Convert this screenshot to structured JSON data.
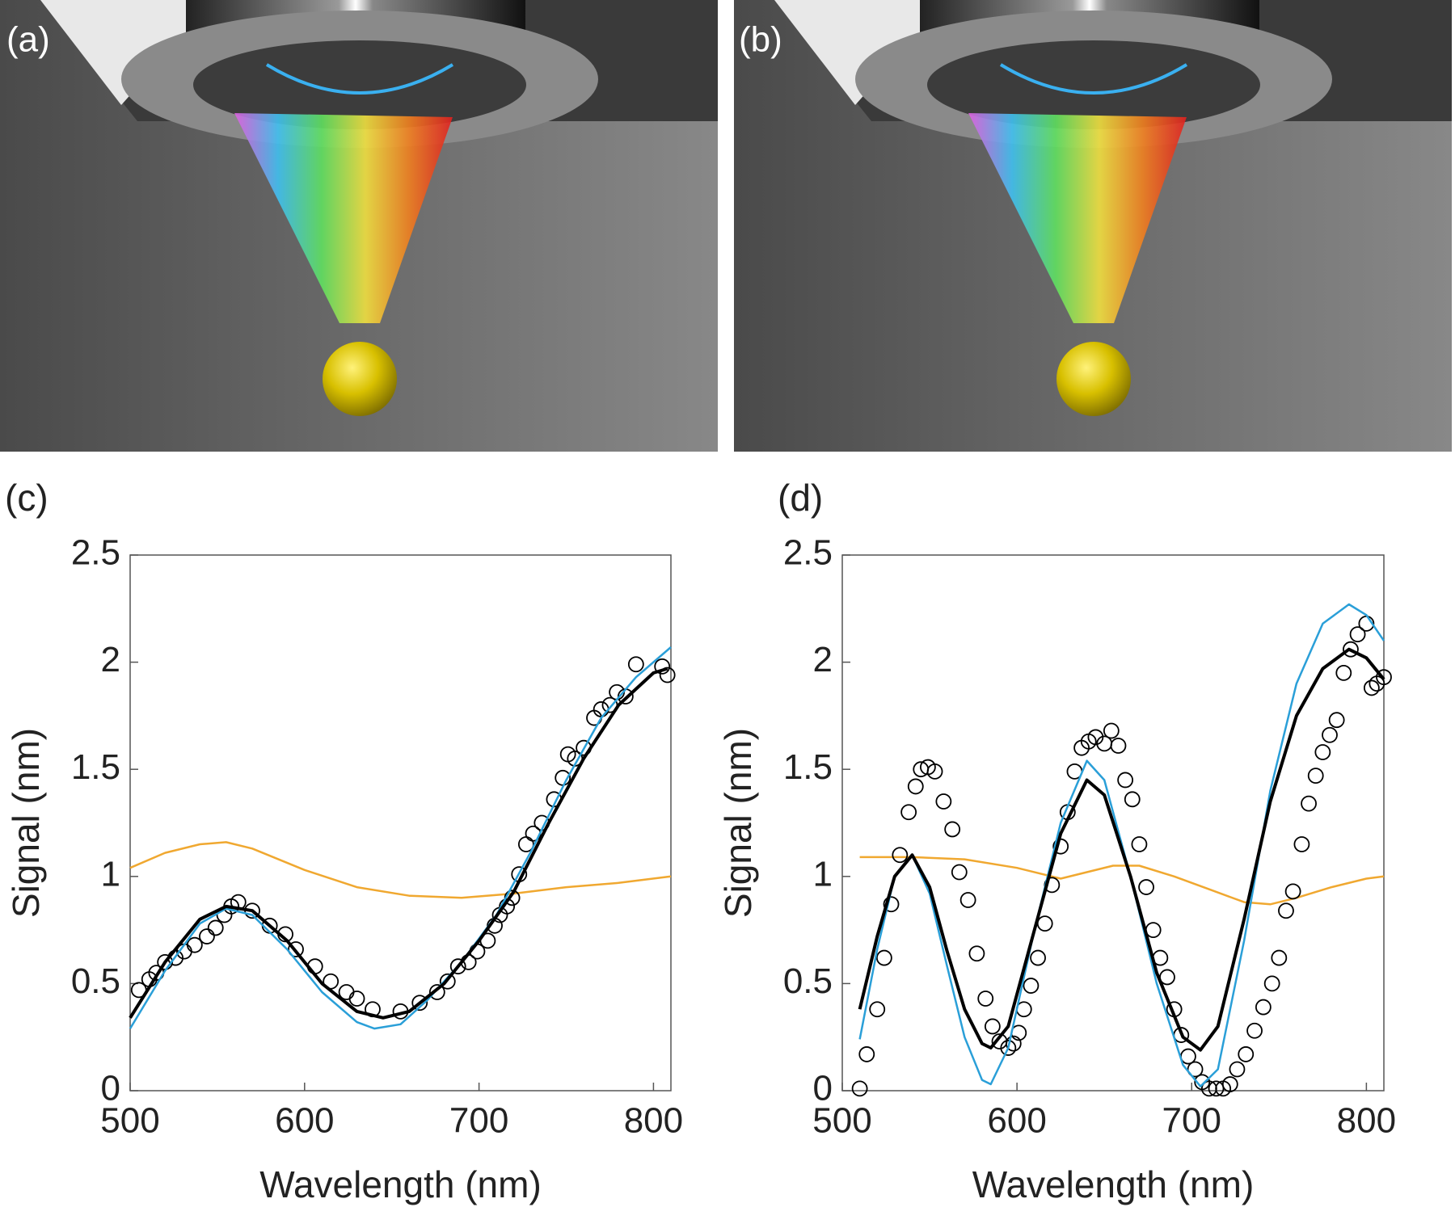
{
  "panels": [
    "(a)",
    "(b)"
  ],
  "chart_data": [
    {
      "type": "line",
      "label": "(c)",
      "xlabel": "Wavelength (nm)",
      "ylabel": "Signal (nm)",
      "xlim": [
        500,
        810
      ],
      "ylim": [
        0,
        2.5
      ],
      "xticks": [
        500,
        600,
        700,
        800
      ],
      "yticks": [
        0,
        0.5,
        1,
        1.5,
        2,
        2.5
      ],
      "series": [
        {
          "color": "#f0a830",
          "x": [
            500,
            520,
            540,
            555,
            570,
            600,
            630,
            660,
            690,
            720,
            750,
            780,
            810
          ],
          "values": [
            1.04,
            1.11,
            1.15,
            1.16,
            1.13,
            1.03,
            0.95,
            0.91,
            0.9,
            0.92,
            0.95,
            0.97,
            1.0
          ]
        },
        {
          "color": "#000000",
          "marker": "o",
          "x": [
            505,
            511,
            515,
            520,
            526,
            531,
            537,
            544,
            549,
            554,
            558,
            562,
            570,
            580,
            589,
            595,
            606,
            615,
            624,
            630,
            639,
            655,
            666,
            676,
            682,
            688,
            694,
            699,
            705,
            709,
            712,
            716,
            719,
            723,
            727,
            731,
            736,
            743,
            748,
            751,
            755,
            760,
            766,
            770,
            775,
            779,
            784,
            790,
            805,
            808
          ],
          "values": [
            0.47,
            0.52,
            0.55,
            0.6,
            0.62,
            0.65,
            0.68,
            0.72,
            0.76,
            0.82,
            0.86,
            0.88,
            0.84,
            0.77,
            0.73,
            0.66,
            0.58,
            0.51,
            0.46,
            0.43,
            0.38,
            0.37,
            0.41,
            0.46,
            0.51,
            0.58,
            0.6,
            0.65,
            0.7,
            0.77,
            0.82,
            0.86,
            0.9,
            1.01,
            1.15,
            1.2,
            1.25,
            1.36,
            1.46,
            1.57,
            1.55,
            1.6,
            1.74,
            1.78,
            1.8,
            1.86,
            1.84,
            1.99,
            1.98,
            1.94
          ]
        },
        {
          "color": "#2a9fd8",
          "x": [
            500,
            520,
            540,
            555,
            570,
            590,
            610,
            630,
            640,
            655,
            670,
            690,
            710,
            730,
            750,
            770,
            790,
            810
          ],
          "values": [
            0.29,
            0.56,
            0.78,
            0.85,
            0.82,
            0.66,
            0.46,
            0.32,
            0.29,
            0.31,
            0.42,
            0.6,
            0.82,
            1.12,
            1.45,
            1.74,
            1.93,
            2.07
          ]
        },
        {
          "color": "#000000",
          "width": 4,
          "x": [
            500,
            520,
            540,
            555,
            570,
            590,
            610,
            630,
            645,
            660,
            680,
            700,
            720,
            740,
            760,
            780,
            800,
            808
          ],
          "values": [
            0.34,
            0.6,
            0.8,
            0.86,
            0.84,
            0.7,
            0.5,
            0.37,
            0.34,
            0.37,
            0.5,
            0.7,
            0.93,
            1.25,
            1.55,
            1.8,
            1.95,
            1.97
          ]
        }
      ]
    },
    {
      "type": "line",
      "label": "(d)",
      "xlabel": "Wavelength (nm)",
      "ylabel": "Signal (nm)",
      "xlim": [
        500,
        810
      ],
      "ylim": [
        0,
        2.5
      ],
      "xticks": [
        500,
        600,
        700,
        800
      ],
      "yticks": [
        0,
        0.5,
        1,
        1.5,
        2,
        2.5
      ],
      "series": [
        {
          "color": "#f0a830",
          "x": [
            510,
            540,
            570,
            600,
            625,
            640,
            655,
            670,
            690,
            710,
            730,
            745,
            760,
            780,
            800,
            810
          ],
          "values": [
            1.09,
            1.09,
            1.08,
            1.04,
            0.99,
            1.02,
            1.05,
            1.05,
            1.0,
            0.94,
            0.88,
            0.87,
            0.9,
            0.95,
            0.99,
            1.0
          ]
        },
        {
          "color": "#000000",
          "marker": "o",
          "x": [
            510,
            514,
            520,
            524,
            528,
            533,
            538,
            542,
            545,
            549,
            553,
            558,
            563,
            567,
            572,
            577,
            582,
            586,
            590,
            595,
            598,
            601,
            604,
            608,
            612,
            616,
            620,
            625,
            629,
            633,
            637,
            641,
            645,
            650,
            654,
            658,
            662,
            666,
            670,
            674,
            678,
            682,
            686,
            690,
            694,
            698,
            702,
            706,
            710,
            714,
            718,
            722,
            726,
            731,
            736,
            741,
            746,
            750,
            754,
            758,
            763,
            767,
            771,
            775,
            779,
            783,
            787,
            791,
            795,
            800,
            803,
            806,
            810
          ],
          "values": [
            0.01,
            0.17,
            0.38,
            0.62,
            0.87,
            1.1,
            1.3,
            1.42,
            1.5,
            1.51,
            1.49,
            1.35,
            1.22,
            1.02,
            0.89,
            0.64,
            0.43,
            0.3,
            0.23,
            0.2,
            0.22,
            0.27,
            0.38,
            0.49,
            0.62,
            0.78,
            0.96,
            1.14,
            1.3,
            1.49,
            1.6,
            1.63,
            1.65,
            1.62,
            1.68,
            1.61,
            1.45,
            1.36,
            1.15,
            0.95,
            0.75,
            0.62,
            0.53,
            0.38,
            0.26,
            0.16,
            0.1,
            0.04,
            0.01,
            0.01,
            0.01,
            0.03,
            0.1,
            0.17,
            0.28,
            0.39,
            0.5,
            0.62,
            0.84,
            0.93,
            1.15,
            1.34,
            1.47,
            1.58,
            1.66,
            1.73,
            1.95,
            2.06,
            2.13,
            2.18,
            1.88,
            1.9,
            1.93
          ]
        },
        {
          "color": "#2a9fd8",
          "x": [
            510,
            520,
            530,
            540,
            550,
            560,
            570,
            580,
            585,
            595,
            610,
            625,
            640,
            650,
            665,
            680,
            695,
            705,
            715,
            730,
            745,
            760,
            775,
            790,
            800,
            810
          ],
          "values": [
            0.24,
            0.66,
            1.0,
            1.1,
            0.92,
            0.58,
            0.25,
            0.05,
            0.03,
            0.2,
            0.75,
            1.25,
            1.54,
            1.45,
            1.0,
            0.5,
            0.12,
            0.02,
            0.1,
            0.7,
            1.4,
            1.9,
            2.18,
            2.27,
            2.22,
            2.1
          ]
        },
        {
          "color": "#000000",
          "width": 4,
          "x": [
            510,
            520,
            530,
            540,
            550,
            560,
            570,
            580,
            585,
            595,
            610,
            625,
            640,
            650,
            665,
            680,
            695,
            705,
            715,
            730,
            745,
            760,
            775,
            790,
            800,
            810
          ],
          "values": [
            0.38,
            0.72,
            1.0,
            1.1,
            0.95,
            0.65,
            0.38,
            0.22,
            0.2,
            0.3,
            0.75,
            1.2,
            1.45,
            1.38,
            1.0,
            0.55,
            0.25,
            0.19,
            0.3,
            0.8,
            1.35,
            1.75,
            1.97,
            2.06,
            2.02,
            1.92
          ]
        }
      ]
    }
  ]
}
